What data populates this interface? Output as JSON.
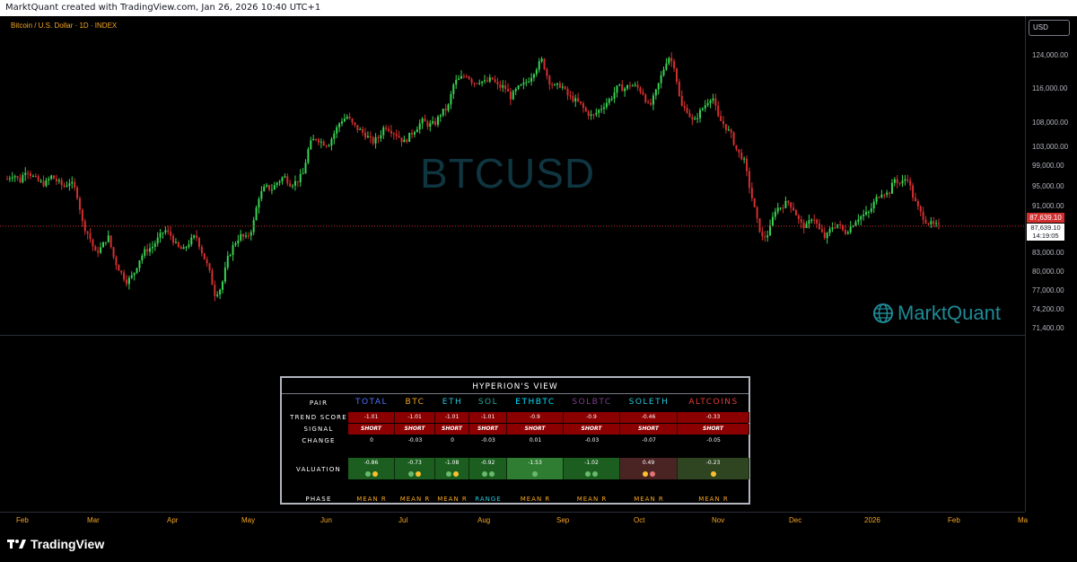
{
  "header": {
    "caption": "MarktQuant created with TradingView.com, Jan 26, 2026 10:40 UTC+1"
  },
  "chart": {
    "symbol_title": "Bitcoin / U.S. Dollar · 1D · INDEX",
    "watermark": "BTCUSD",
    "brand": "MarktQuant",
    "currency_button": "USD",
    "price_labels": [
      "124,000.00",
      "116,000.00",
      "108,000.00",
      "103,000.00",
      "99,000.00",
      "95,000.00",
      "91,000.00",
      "83,000.00",
      "80,000.00",
      "77,000.00",
      "74,200.00",
      "71,400.00"
    ],
    "current_price": "87,639.10",
    "current_price_repeat": "87,639.10",
    "countdown": "14:19:05",
    "months": [
      "Feb",
      "Mar",
      "Apr",
      "May",
      "Jun",
      "Jul",
      "Aug",
      "Sep",
      "Oct",
      "Nov",
      "Dec",
      "2026",
      "Feb",
      "Ma"
    ],
    "colors": {
      "up": "#39d353",
      "down": "#d32f2f",
      "axis_text": "#f5a623"
    }
  },
  "chart_data": {
    "type": "candlestick",
    "series": [
      {
        "name": "BTCUSD",
        "close_path": [
          96500,
          97500,
          96000,
          98500,
          97000,
          96000,
          95500,
          97000,
          96000,
          95000,
          96000,
          94000,
          88000,
          86000,
          83000,
          84000,
          86000,
          82000,
          80000,
          78500,
          79500,
          82000,
          83500,
          84000,
          85500,
          87000,
          86000,
          84000,
          83500,
          85000,
          86000,
          83000,
          80500,
          76500,
          77500,
          82000,
          84500,
          86000,
          85500,
          87500,
          93000,
          95000,
          94500,
          96000,
          97000,
          95500,
          96000,
          97500,
          103500,
          105000,
          104000,
          103500,
          106000,
          108500,
          109500,
          107500,
          106500,
          105500,
          104000,
          105000,
          107500,
          106500,
          105500,
          104000,
          105500,
          107000,
          108500,
          107500,
          108000,
          110500,
          111500,
          117500,
          118500,
          119500,
          117500,
          118000,
          117500,
          118500,
          116500,
          116500,
          114000,
          116000,
          117000,
          118500,
          121000,
          123000,
          118000,
          116500,
          117000,
          114500,
          113500,
          112500,
          110500,
          109500,
          111000,
          112500,
          114000,
          116500,
          116000,
          117000,
          116500,
          115000,
          111500,
          115000,
          119500,
          124000,
          121500,
          112000,
          111000,
          108000,
          110500,
          112500,
          114500,
          109000,
          107500,
          105500,
          102000,
          100500,
          94500,
          89000,
          85500,
          86500,
          90500,
          91000,
          92000,
          90500,
          88000,
          87500,
          89500,
          87000,
          85500,
          87500,
          88000,
          86500,
          87500,
          89000,
          89500,
          90000,
          92500,
          94000,
          93500,
          96500,
          95500,
          97000,
          92500,
          90000,
          88500,
          87800,
          87639
        ]
      }
    ],
    "xaxis_months": [
      "Feb",
      "Mar",
      "Apr",
      "May",
      "Jun",
      "Jul",
      "Aug",
      "Sep",
      "Oct",
      "Nov",
      "Dec",
      "2026",
      "Feb",
      "Ma"
    ]
  },
  "panel": {
    "title": "HYPERION'S VIEW",
    "row_labels": {
      "pair": "PAIR",
      "trend": "TREND SCORE",
      "signal": "SIGNAL",
      "change": "CHANGE",
      "valuation": "VALUATION",
      "phase": "PHASE"
    },
    "columns": [
      {
        "pair": "TOTAL",
        "color": "#4f73ff",
        "trend": "-1.01",
        "signal": "SHORT",
        "change": "0",
        "valuation": "-0.86",
        "val_bg": "#1b5e20",
        "dots": [
          "#66bb6a",
          "#fbc02d"
        ],
        "phase": "MEAN R",
        "phase_color": "#f5a623"
      },
      {
        "pair": "BTC",
        "color": "#f5a623",
        "trend": "-1.01",
        "signal": "SHORT",
        "change": "-0.03",
        "valuation": "-0.73",
        "val_bg": "#1b5e20",
        "dots": [
          "#66bb6a",
          "#fbc02d"
        ],
        "phase": "MEAN R",
        "phase_color": "#f5a623"
      },
      {
        "pair": "ETH",
        "color": "#26c6da",
        "trend": "-1.01",
        "signal": "SHORT",
        "change": "0",
        "valuation": "-1.08",
        "val_bg": "#1b5e20",
        "dots": [
          "#66bb6a",
          "#fbc02d"
        ],
        "phase": "MEAN R",
        "phase_color": "#f5a623"
      },
      {
        "pair": "SOL",
        "color": "#26a69a",
        "trend": "-1.01",
        "signal": "SHORT",
        "change": "-0.03",
        "valuation": "-0.92",
        "val_bg": "#1b5e20",
        "dots": [
          "#66bb6a",
          "#66bb6a"
        ],
        "phase": "RANGE",
        "phase_color": "#26c6da"
      },
      {
        "pair": "ETHBTC",
        "color": "#00e5ff",
        "trend": "-0.9",
        "signal": "SHORT",
        "change": "0.01",
        "valuation": "-1.53",
        "val_bg": "#2e7d32",
        "dots": [
          "#66bb6a"
        ],
        "phase": "MEAN R",
        "phase_color": "#f5a623"
      },
      {
        "pair": "SOLBTC",
        "color": "#7b3f8c",
        "trend": "-0.9",
        "signal": "SHORT",
        "change": "-0.03",
        "valuation": "-1.02",
        "val_bg": "#1b5e20",
        "dots": [
          "#66bb6a",
          "#66bb6a"
        ],
        "phase": "MEAN R",
        "phase_color": "#f5a623"
      },
      {
        "pair": "SOLETH",
        "color": "#26c6da",
        "trend": "-0.46",
        "signal": "SHORT",
        "change": "-0.07",
        "valuation": "0.49",
        "val_bg": "#4a2323",
        "dots": [
          "#fbc02d",
          "#e57373"
        ],
        "phase": "MEAN R",
        "phase_color": "#f5a623"
      },
      {
        "pair": "ALTCOINS",
        "color": "#e53935",
        "trend": "-0.33",
        "signal": "SHORT",
        "change": "-0.05",
        "valuation": "-0.23",
        "val_bg": "#2f4420",
        "dots": [
          "#fbc02d"
        ],
        "phase": "MEAN R",
        "phase_color": "#f5a623"
      }
    ]
  },
  "footer": {
    "logo_text": "TradingView"
  }
}
